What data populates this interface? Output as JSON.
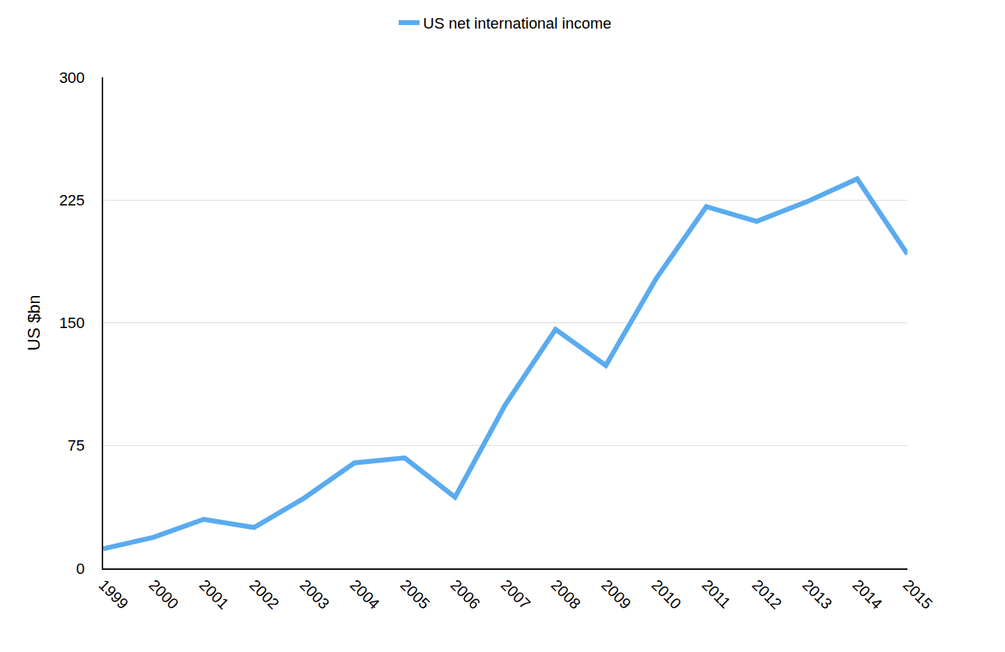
{
  "chart_data": {
    "type": "line",
    "ylabel": "US $bn",
    "categories": [
      "1999",
      "2000",
      "2001",
      "2002",
      "2003",
      "2004",
      "2005",
      "2006",
      "2007",
      "2008",
      "2009",
      "2010",
      "2011",
      "2012",
      "2013",
      "2014",
      "2015"
    ],
    "series": [
      {
        "name": "US net international income",
        "color": "#5aabf0",
        "values": [
          12,
          19,
          30,
          25,
          43,
          64.5,
          67.5,
          43.5,
          100,
          146,
          124,
          177,
          221,
          212,
          224,
          238,
          192
        ]
      }
    ],
    "ylim": [
      0,
      300
    ],
    "yticks": [
      0,
      75,
      150,
      225,
      300
    ],
    "grid": true,
    "legend": "top"
  }
}
